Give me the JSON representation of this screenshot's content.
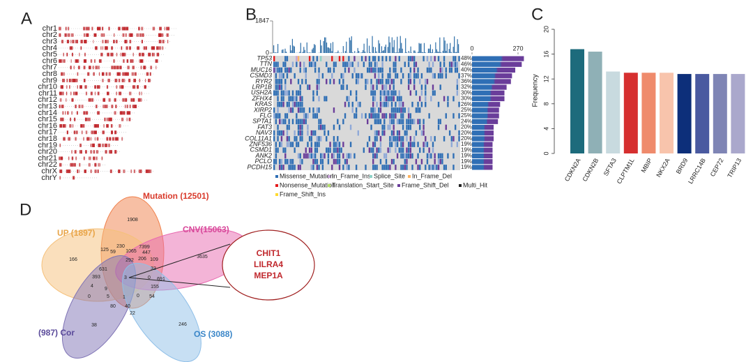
{
  "panels": [
    "A",
    "B",
    "C",
    "D"
  ],
  "chart_data": [
    {
      "type": "karyotype",
      "categories": [
        "chr1",
        "chr2",
        "chr3",
        "chr4",
        "chr5",
        "chr6",
        "chr7",
        "chr8",
        "chr9",
        "chr10",
        "chr11",
        "chr12",
        "chr13",
        "chr14",
        "chr15",
        "chr16",
        "chr17",
        "chr18",
        "chr19",
        "chr20",
        "chr21",
        "chr22",
        "chrX",
        "chrY"
      ],
      "color": "#c0282d"
    },
    {
      "type": "oncoplot",
      "categories": [
        "TP53",
        "TTN",
        "MUC16",
        "CSMD3",
        "RYR2",
        "LRP1B",
        "USH2A",
        "ZFHX4",
        "KRAS",
        "XIRP2",
        "FLG",
        "SPTA1",
        "FAT3",
        "NAV3",
        "COL11A1",
        "ZNF536",
        "CSMD1",
        "ANK2",
        "PCLO",
        "PCDH15"
      ],
      "values": [
        48,
        46,
        40,
        37,
        36,
        32,
        30,
        30,
        26,
        25,
        25,
        24,
        20,
        20,
        20,
        19,
        19,
        19,
        19,
        19
      ],
      "value_labels": [
        "48%",
        "46%",
        "40%",
        "37%",
        "36%",
        "32%",
        "30%",
        "30%",
        "26%",
        "25%",
        "25%",
        "24%",
        "20%",
        "20%",
        "20%",
        "19%",
        "19%",
        "19%",
        "19%",
        "19%"
      ],
      "ylim": [
        0,
        1847
      ],
      "yticks": [
        1847,
        0
      ],
      "xlim": [
        0,
        270
      ],
      "xticks": [
        0,
        270
      ],
      "legend": [
        {
          "name": "Missense_Mutation",
          "color": "#2f6fb5"
        },
        {
          "name": "In_Frame_Ins",
          "color": "#c7a3d6"
        },
        {
          "name": "Splice_Site",
          "color": "#8dd3c7"
        },
        {
          "name": "In_Frame_Del",
          "color": "#fdb462"
        },
        {
          "name": "Nonsense_Mutation",
          "color": "#e41a1c"
        },
        {
          "name": "Translation_Start_Site",
          "color": "#b3de69"
        },
        {
          "name": "Frame_Shift_Del",
          "color": "#6a3d9a"
        },
        {
          "name": "Multi_Hit",
          "color": "#222222"
        },
        {
          "name": "Frame_Shift_Ins",
          "color": "#ffd92f"
        }
      ]
    },
    {
      "type": "bar",
      "categories": [
        "CDKN2A",
        "CDKN2B",
        "SFTA3",
        "CLPTM1L",
        "MBIP",
        "NKX2A",
        "BRD9",
        "LRRC14B",
        "CEP72",
        "TRIP13"
      ],
      "values": [
        16.8,
        16.4,
        13.2,
        13.0,
        13.0,
        13.0,
        12.8,
        12.8,
        12.8,
        12.8
      ],
      "colors": [
        "#1d6b7c",
        "#8fb0b6",
        "#c8dadf",
        "#d62f2f",
        "#ef8b6c",
        "#f8c4ac",
        "#0d2f7a",
        "#4a5aa0",
        "#7f85b5",
        "#aaa8cc"
      ],
      "ylabel": "Frequency",
      "ylim": [
        0,
        20
      ],
      "yticks": [
        0,
        4,
        8,
        12,
        16,
        20
      ]
    }
  ],
  "venn": {
    "sets": [
      {
        "label": "Mutation (12501)",
        "color": "#d93a2b"
      },
      {
        "label": "UP (1897)",
        "color": "#e8a447"
      },
      {
        "label": "CNV(15063)",
        "color": "#d8479a"
      },
      {
        "label": "(987) Cor",
        "color": "#5a4a9a"
      },
      {
        "label": "OS (3088)",
        "color": "#3a86c8"
      }
    ],
    "regions": [
      1908,
      7399,
      3635,
      166,
      125,
      59,
      230,
      1065,
      447,
      292,
      206,
      109,
      631,
      33,
      393,
      3,
      0,
      691,
      4,
      9,
      155,
      0,
      5,
      1,
      0,
      54,
      80,
      40,
      22,
      38,
      246
    ],
    "highlight": [
      "CHIT1",
      "LILRA4",
      "MEP1A"
    ]
  }
}
